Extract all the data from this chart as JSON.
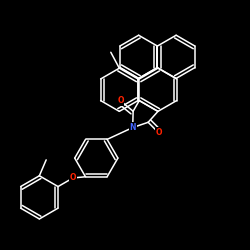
{
  "background_color": "#000000",
  "atom_colors": {
    "N": "#4466FF",
    "O": "#FF2200"
  },
  "bond_color": "#FFFFFF",
  "bond_width": 1.1,
  "figsize": [
    2.5,
    2.5
  ],
  "dpi": 100,
  "xlim": [
    -2.2,
    2.2
  ],
  "ylim": [
    -2.2,
    2.2
  ]
}
